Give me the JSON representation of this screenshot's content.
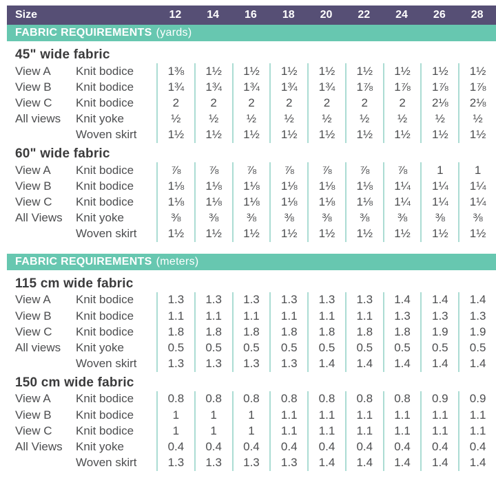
{
  "colors": {
    "header_bg": "#564f75",
    "banner_bg": "#67c7b0",
    "separator": "#abdcd3",
    "heading_text": "#3b3b3c",
    "row_text": "#4c4d4f",
    "header_text": "#ffffff"
  },
  "size_header": {
    "label": "Size",
    "sizes": [
      "12",
      "14",
      "16",
      "18",
      "20",
      "22",
      "24",
      "26",
      "28"
    ]
  },
  "tables": [
    {
      "banner": {
        "title": "FABRIC REQUIREMENTS",
        "unit": "(yards)"
      },
      "sections": [
        {
          "heading": "45\" wide fabric",
          "rows": [
            {
              "view": "View A",
              "item": "Knit bodice",
              "values": [
                "1⅜",
                "1½",
                "1½",
                "1½",
                "1½",
                "1½",
                "1½",
                "1½",
                "1½"
              ]
            },
            {
              "view": "View B",
              "item": "Knit bodice",
              "values": [
                "1¾",
                "1¾",
                "1¾",
                "1¾",
                "1¾",
                "1⅞",
                "1⅞",
                "1⅞",
                "1⅞"
              ]
            },
            {
              "view": "View C",
              "item": "Knit bodice",
              "values": [
                "2",
                "2",
                "2",
                "2",
                "2",
                "2",
                "2",
                "2⅛",
                "2⅛"
              ]
            },
            {
              "view": "All views",
              "item": "Knit yoke",
              "values": [
                "½",
                "½",
                "½",
                "½",
                "½",
                "½",
                "½",
                "½",
                "½"
              ]
            },
            {
              "view": "",
              "item": "Woven skirt",
              "values": [
                "1½",
                "1½",
                "1½",
                "1½",
                "1½",
                "1½",
                "1½",
                "1½",
                "1½"
              ]
            }
          ]
        },
        {
          "heading": "60\" wide fabric",
          "rows": [
            {
              "view": "View A",
              "item": "Knit bodice",
              "values": [
                "⅞",
                "⅞",
                "⅞",
                "⅞",
                "⅞",
                "⅞",
                "⅞",
                "1",
                "1"
              ]
            },
            {
              "view": "View B",
              "item": "Knit bodice",
              "values": [
                "1⅛",
                "1⅛",
                "1⅛",
                "1⅛",
                "1⅛",
                "1⅛",
                "1¼",
                "1¼",
                "1¼"
              ]
            },
            {
              "view": "View C",
              "item": "Knit bodice",
              "values": [
                "1⅛",
                "1⅛",
                "1⅛",
                "1⅛",
                "1⅛",
                "1⅛",
                "1¼",
                "1¼",
                "1¼"
              ]
            },
            {
              "view": "All Views",
              "item": "Knit yoke",
              "values": [
                "⅜",
                "⅜",
                "⅜",
                "⅜",
                "⅜",
                "⅜",
                "⅜",
                "⅜",
                "⅜"
              ]
            },
            {
              "view": "",
              "item": "Woven skirt",
              "values": [
                "1½",
                "1½",
                "1½",
                "1½",
                "1½",
                "1½",
                "1½",
                "1½",
                "1½"
              ]
            }
          ]
        }
      ]
    },
    {
      "banner": {
        "title": "FABRIC REQUIREMENTS",
        "unit": "(meters)"
      },
      "sections": [
        {
          "heading": "115 cm wide fabric",
          "rows": [
            {
              "view": "View A",
              "item": "Knit bodice",
              "values": [
                "1.3",
                "1.3",
                "1.3",
                "1.3",
                "1.3",
                "1.3",
                "1.4",
                "1.4",
                "1.4"
              ]
            },
            {
              "view": "View B",
              "item": "Knit bodice",
              "values": [
                "1.1",
                "1.1",
                "1.1",
                "1.1",
                "1.1",
                "1.1",
                "1.3",
                "1.3",
                "1.3"
              ]
            },
            {
              "view": "View C",
              "item": "Knit bodice",
              "values": [
                "1.8",
                "1.8",
                "1.8",
                "1.8",
                "1.8",
                "1.8",
                "1.8",
                "1.9",
                "1.9"
              ]
            },
            {
              "view": "All views",
              "item": "Knit yoke",
              "values": [
                "0.5",
                "0.5",
                "0.5",
                "0.5",
                "0.5",
                "0.5",
                "0.5",
                "0.5",
                "0.5"
              ]
            },
            {
              "view": "",
              "item": "Woven skirt",
              "values": [
                "1.3",
                "1.3",
                "1.3",
                "1.3",
                "1.4",
                "1.4",
                "1.4",
                "1.4",
                "1.4"
              ]
            }
          ]
        },
        {
          "heading": "150 cm wide fabric",
          "rows": [
            {
              "view": "View A",
              "item": "Knit bodice",
              "values": [
                "0.8",
                "0.8",
                "0.8",
                "0.8",
                "0.8",
                "0.8",
                "0.8",
                "0.9",
                "0.9"
              ]
            },
            {
              "view": "View B",
              "item": "Knit bodice",
              "values": [
                "1",
                "1",
                "1",
                "1.1",
                "1.1",
                "1.1",
                "1.1",
                "1.1",
                "1.1"
              ]
            },
            {
              "view": "View C",
              "item": "Knit bodice",
              "values": [
                "1",
                "1",
                "1",
                "1.1",
                "1.1",
                "1.1",
                "1.1",
                "1.1",
                "1.1"
              ]
            },
            {
              "view": "All Views",
              "item": "Knit yoke",
              "values": [
                "0.4",
                "0.4",
                "0.4",
                "0.4",
                "0.4",
                "0.4",
                "0.4",
                "0.4",
                "0.4"
              ]
            },
            {
              "view": "",
              "item": "Woven skirt",
              "values": [
                "1.3",
                "1.3",
                "1.3",
                "1.3",
                "1.4",
                "1.4",
                "1.4",
                "1.4",
                "1.4"
              ]
            }
          ]
        }
      ]
    }
  ]
}
